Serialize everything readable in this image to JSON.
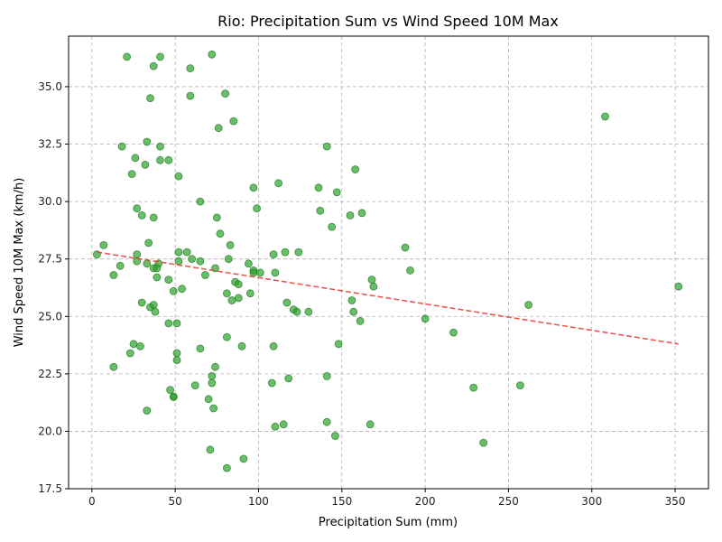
{
  "chart_data": {
    "type": "scatter",
    "title": "Rio: Precipitation Sum vs Wind Speed 10M Max",
    "xlabel": "Precipitation Sum (mm)",
    "ylabel": "Wind Speed 10M Max (km/h)",
    "xlim": [
      -14,
      370
    ],
    "ylim": [
      17.5,
      37.2
    ],
    "xticks": [
      0,
      50,
      100,
      150,
      200,
      250,
      300,
      350
    ],
    "yticks": [
      17.5,
      20.0,
      22.5,
      25.0,
      27.5,
      30.0,
      32.5,
      35.0
    ],
    "xtick_labels": [
      "0",
      "50",
      "100",
      "150",
      "200",
      "250",
      "300",
      "350"
    ],
    "ytick_labels": [
      "17.5",
      "20.0",
      "22.5",
      "25.0",
      "27.5",
      "30.0",
      "32.5",
      "35.0"
    ],
    "grid": true,
    "point_color": "#2ca02c",
    "trend_color": "#e8453c",
    "trendline": {
      "x": [
        3,
        352
      ],
      "y": [
        27.8,
        23.8
      ]
    },
    "points": [
      [
        21,
        36.3
      ],
      [
        41,
        36.3
      ],
      [
        72,
        36.4
      ],
      [
        37,
        35.9
      ],
      [
        59,
        35.8
      ],
      [
        35,
        34.5
      ],
      [
        59,
        34.6
      ],
      [
        80,
        34.7
      ],
      [
        85,
        33.5
      ],
      [
        76,
        33.2
      ],
      [
        308,
        33.7
      ],
      [
        18,
        32.4
      ],
      [
        33,
        32.6
      ],
      [
        41,
        32.4
      ],
      [
        141,
        32.4
      ],
      [
        26,
        31.9
      ],
      [
        41,
        31.8
      ],
      [
        46,
        31.8
      ],
      [
        32,
        31.6
      ],
      [
        158,
        31.4
      ],
      [
        24,
        31.2
      ],
      [
        52,
        31.1
      ],
      [
        97,
        30.6
      ],
      [
        112,
        30.8
      ],
      [
        136,
        30.6
      ],
      [
        147,
        30.4
      ],
      [
        65,
        30.0
      ],
      [
        27,
        29.7
      ],
      [
        99,
        29.7
      ],
      [
        137,
        29.6
      ],
      [
        162,
        29.5
      ],
      [
        155,
        29.4
      ],
      [
        30,
        29.4
      ],
      [
        37,
        29.3
      ],
      [
        75,
        29.3
      ],
      [
        144,
        28.9
      ],
      [
        77,
        28.6
      ],
      [
        34,
        28.2
      ],
      [
        7,
        28.1
      ],
      [
        83,
        28.1
      ],
      [
        188,
        28.0
      ],
      [
        52,
        27.8
      ],
      [
        57,
        27.8
      ],
      [
        116,
        27.8
      ],
      [
        124,
        27.8
      ],
      [
        3,
        27.7
      ],
      [
        27,
        27.7
      ],
      [
        109,
        27.7
      ],
      [
        60,
        27.5
      ],
      [
        82,
        27.5
      ],
      [
        27,
        27.4
      ],
      [
        52,
        27.4
      ],
      [
        65,
        27.4
      ],
      [
        94,
        27.3
      ],
      [
        33,
        27.3
      ],
      [
        40,
        27.3
      ],
      [
        17,
        27.2
      ],
      [
        37,
        27.1
      ],
      [
        39,
        27.1
      ],
      [
        74,
        27.1
      ],
      [
        97,
        27.0
      ],
      [
        97,
        26.9
      ],
      [
        191,
        27.0
      ],
      [
        110,
        26.9
      ],
      [
        101,
        26.9
      ],
      [
        68,
        26.8
      ],
      [
        13,
        26.8
      ],
      [
        39,
        26.7
      ],
      [
        46,
        26.6
      ],
      [
        86,
        26.5
      ],
      [
        168,
        26.6
      ],
      [
        88,
        26.4
      ],
      [
        169,
        26.3
      ],
      [
        352,
        26.3
      ],
      [
        54,
        26.2
      ],
      [
        49,
        26.1
      ],
      [
        81,
        26.0
      ],
      [
        95,
        26.0
      ],
      [
        88,
        25.8
      ],
      [
        84,
        25.7
      ],
      [
        117,
        25.6
      ],
      [
        156,
        25.7
      ],
      [
        262,
        25.5
      ],
      [
        30,
        25.6
      ],
      [
        35,
        25.4
      ],
      [
        37,
        25.5
      ],
      [
        38,
        25.2
      ],
      [
        121,
        25.3
      ],
      [
        123,
        25.2
      ],
      [
        130,
        25.2
      ],
      [
        157,
        25.2
      ],
      [
        161,
        24.8
      ],
      [
        200,
        24.9
      ],
      [
        46,
        24.7
      ],
      [
        51,
        24.7
      ],
      [
        217,
        24.3
      ],
      [
        81,
        24.1
      ],
      [
        25,
        23.8
      ],
      [
        29,
        23.7
      ],
      [
        65,
        23.6
      ],
      [
        90,
        23.7
      ],
      [
        109,
        23.7
      ],
      [
        148,
        23.8
      ],
      [
        23,
        23.4
      ],
      [
        51,
        23.4
      ],
      [
        51,
        23.1
      ],
      [
        13,
        22.8
      ],
      [
        74,
        22.8
      ],
      [
        72,
        22.4
      ],
      [
        118,
        22.3
      ],
      [
        141,
        22.4
      ],
      [
        72,
        22.1
      ],
      [
        62,
        22.0
      ],
      [
        108,
        22.1
      ],
      [
        229,
        21.9
      ],
      [
        257,
        22.0
      ],
      [
        47,
        21.8
      ],
      [
        49,
        21.5
      ],
      [
        49,
        21.5
      ],
      [
        70,
        21.4
      ],
      [
        73,
        21.0
      ],
      [
        33,
        20.9
      ],
      [
        115,
        20.3
      ],
      [
        110,
        20.2
      ],
      [
        141,
        20.4
      ],
      [
        167,
        20.3
      ],
      [
        146,
        19.8
      ],
      [
        235,
        19.5
      ],
      [
        71,
        19.2
      ],
      [
        91,
        18.8
      ],
      [
        81,
        18.4
      ]
    ]
  }
}
